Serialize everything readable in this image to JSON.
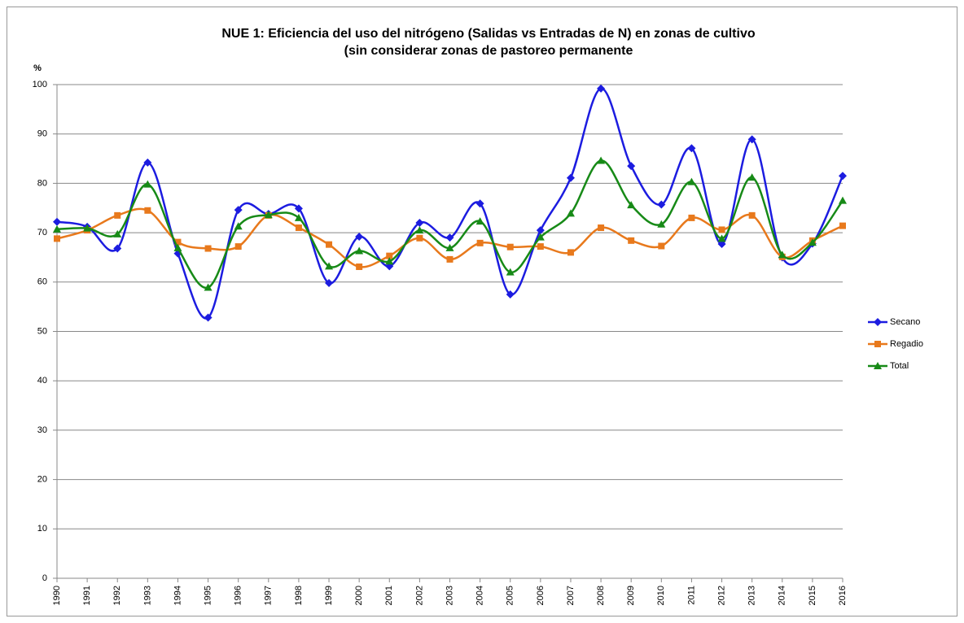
{
  "chart_data": {
    "type": "line",
    "title": [
      "NUE 1: Eficiencia del uso del nitrógeno (Salidas vs Entradas de N) en zonas de cultivo",
      "(sin considerar zonas de pastoreo permanente"
    ],
    "y_label": "%",
    "categories": [
      "1990",
      "1991",
      "1992",
      "1993",
      "1994",
      "1995",
      "1996",
      "1997",
      "1998",
      "1999",
      "2000",
      "2001",
      "2002",
      "2003",
      "2004",
      "2005",
      "2006",
      "2007",
      "2008",
      "2009",
      "2010",
      "2011",
      "2012",
      "2013",
      "2014",
      "2015",
      "2016"
    ],
    "series": [
      {
        "name": "Secano",
        "color": "#1c1ce0",
        "marker": "diamond",
        "values": [
          72.2,
          71.2,
          66.8,
          84.2,
          65.8,
          52.8,
          74.6,
          73.8,
          74.9,
          59.8,
          69.2,
          63.2,
          72.0,
          69.0,
          75.9,
          57.5,
          70.5,
          81.1,
          99.2,
          83.5,
          75.7,
          87.1,
          67.7,
          88.9,
          65.0,
          67.8,
          81.5
        ]
      },
      {
        "name": "Regadio",
        "color": "#e8791c",
        "marker": "square",
        "values": [
          68.8,
          70.5,
          73.5,
          74.5,
          68.1,
          66.8,
          67.2,
          73.5,
          71.0,
          67.6,
          63.1,
          65.3,
          68.9,
          64.6,
          67.9,
          67.1,
          67.2,
          66.0,
          71.0,
          68.4,
          67.3,
          73.0,
          70.6,
          73.5,
          65.1,
          68.4,
          71.4
        ]
      },
      {
        "name": "Total",
        "color": "#178a17",
        "marker": "triangle",
        "values": [
          70.7,
          70.9,
          69.7,
          79.8,
          66.9,
          58.9,
          71.3,
          73.6,
          73.0,
          63.2,
          66.3,
          64.2,
          70.5,
          66.9,
          72.3,
          62.0,
          69.1,
          73.9,
          84.6,
          75.6,
          71.7,
          80.3,
          68.8,
          81.2,
          65.5,
          68.0,
          76.5
        ]
      }
    ],
    "ylim": [
      0,
      100
    ],
    "yticks": [
      0,
      10,
      20,
      30,
      40,
      50,
      60,
      70,
      80,
      90,
      100
    ],
    "grid": true,
    "legend": "right"
  }
}
